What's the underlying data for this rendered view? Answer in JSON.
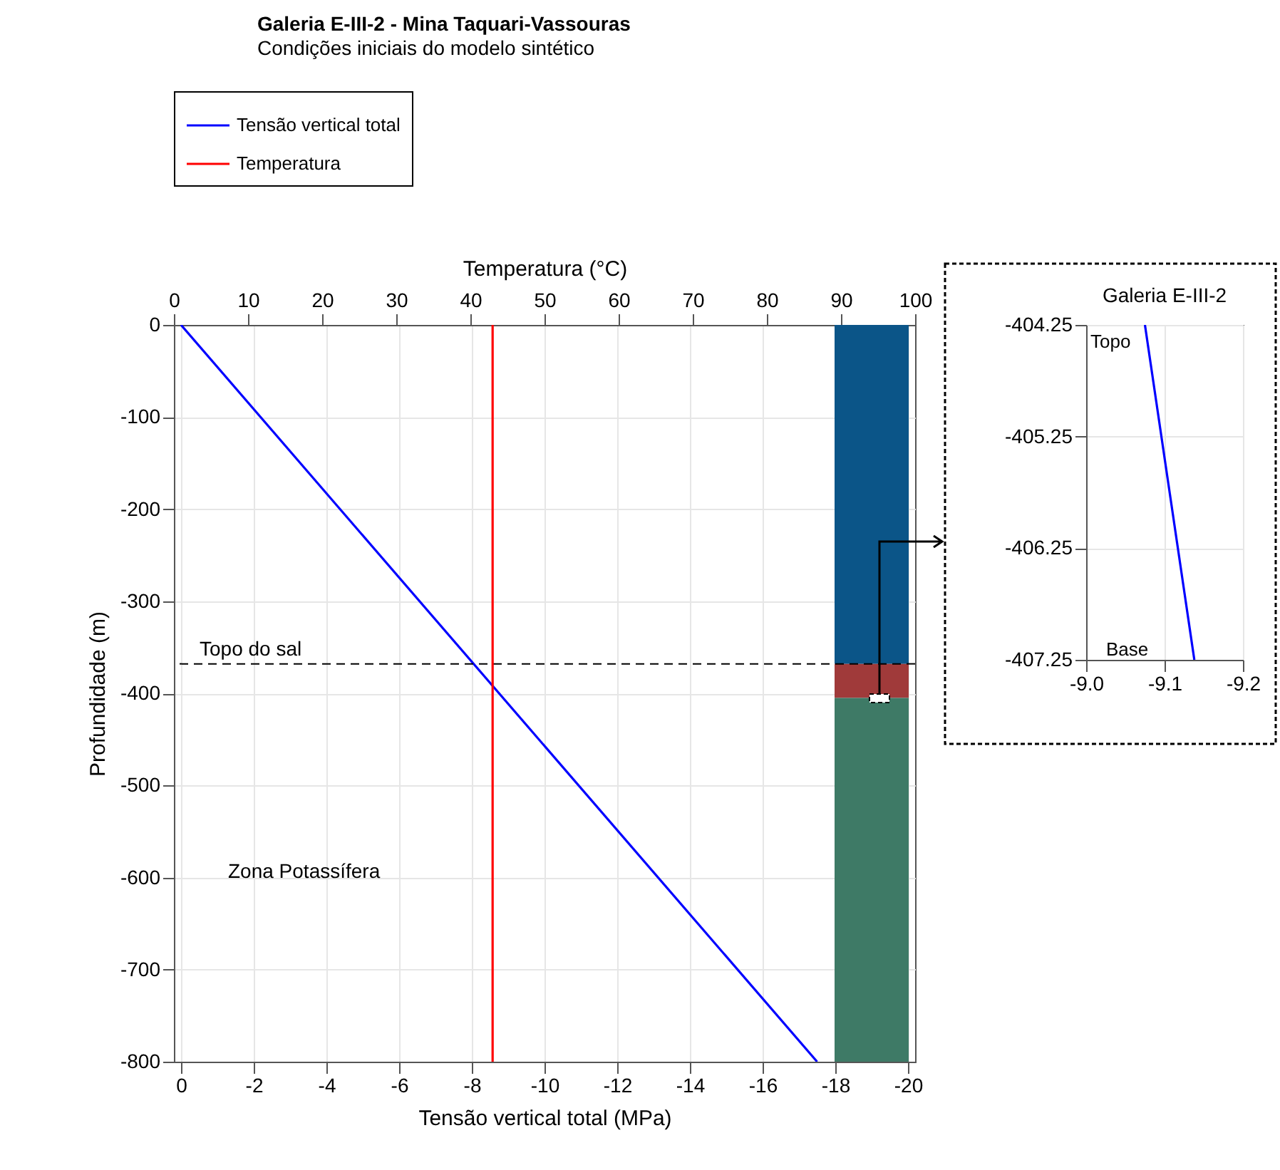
{
  "chart_data": [
    {
      "type": "line",
      "title": "Galeria E-III-2 - Mina Taquari-Vassouras",
      "subtitle": "Condições iniciais do modelo sintético",
      "xlabel": "Tensão vertical total (MPa)",
      "x2label": "Temperatura (°C)",
      "ylabel": "Profundidade (m)",
      "xlim": [
        0,
        -20
      ],
      "xticks": [
        0,
        -2,
        -4,
        -6,
        -8,
        -10,
        -12,
        -14,
        -16,
        -18,
        -20
      ],
      "x2lim": [
        0,
        100
      ],
      "x2ticks": [
        0,
        10,
        20,
        30,
        40,
        50,
        60,
        70,
        80,
        90,
        100
      ],
      "ylim": [
        -800,
        0
      ],
      "yticks": [
        -800,
        -700,
        -600,
        -500,
        -400,
        -300,
        -200,
        -100,
        0
      ],
      "grid": true,
      "legend": "top",
      "stacked": true,
      "series": [
        {
          "type": "bar",
          "color": "#0b5588",
          "x": [
            -19
          ],
          "values": [
            -368
          ]
        },
        {
          "type": "bar",
          "color": "#a03a3a",
          "x": [
            -19
          ],
          "values": [
            -37
          ]
        },
        {
          "type": "bar",
          "color": "#3e7a66",
          "x": [
            -19
          ],
          "values": [
            -395
          ]
        },
        {
          "name": "Tensão vertical total",
          "color": "#0000ff",
          "x": [
            0,
            -17.5
          ],
          "values": [
            0,
            -800
          ]
        },
        {
          "name": "Temperatura",
          "color": "#ff0000",
          "axis": "x2",
          "x": [
            43,
            43
          ],
          "values": [
            0,
            -800
          ]
        }
      ],
      "ref_lines": [
        {
          "axis": "y",
          "value": -368,
          "label": "Topo do sal",
          "color": "#000000",
          "line_style": "dashed"
        }
      ],
      "annotations": [
        "Zona Potassífera"
      ]
    },
    {
      "type": "line",
      "title": "Galeria E-III-2",
      "xlim": [
        -9.0,
        -9.2
      ],
      "xticks": [
        {
          "value": -9.0,
          "label": "-9.0"
        },
        -9.1,
        {
          "value": -9.2,
          "label": "-9.2"
        }
      ],
      "ylim": [
        -407.25,
        -404.25
      ],
      "yticks": [
        -404.25,
        -405.25,
        -406.25,
        -407.25
      ],
      "grid": true,
      "series": [
        {
          "color": "#0000ff",
          "x": [
            -9.075,
            -9.138
          ],
          "values": [
            -404.25,
            -407.25
          ]
        }
      ],
      "annotations": [
        "Topo",
        "Base"
      ]
    }
  ]
}
